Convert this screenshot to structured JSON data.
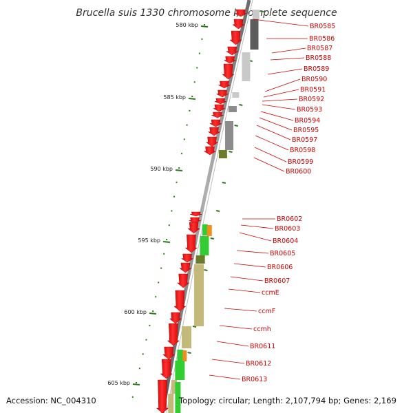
{
  "title": "Brucella suis 1330 chromosome I, complete sequence",
  "accession": "Accession: NC_004310",
  "topology": "Topology: circular; Length: 2,107,794 bp; Genes: 2,169",
  "colors": {
    "backbone": "#7a7a7a",
    "gene": "#ff0000",
    "label": "#cc0000",
    "tick": "#2a7a1a",
    "gray_dark": "#5c5c5c",
    "gray_mid": "#8c8c8c",
    "gray_light": "#c9c9c9",
    "green": "#33cc33",
    "olive": "#6b7d2a",
    "khaki": "#c2b97a",
    "orange": "#f28c1c"
  },
  "kbp_marks": [
    {
      "label": "580 kbp",
      "value": 580
    },
    {
      "label": "585 kbp",
      "value": 585
    },
    {
      "label": "590 kbp",
      "value": 590
    },
    {
      "label": "595 kbp",
      "value": 595
    },
    {
      "label": "600 kbp",
      "value": 600
    },
    {
      "label": "605 kbp",
      "value": 605
    }
  ],
  "genes": [
    {
      "name": "BR0585"
    },
    {
      "name": "BR0586"
    },
    {
      "name": "BR0587"
    },
    {
      "name": "BR0588"
    },
    {
      "name": "BR0589"
    },
    {
      "name": "BR0590"
    },
    {
      "name": "BR0591"
    },
    {
      "name": "BR0592"
    },
    {
      "name": "BR0593"
    },
    {
      "name": "BR0594"
    },
    {
      "name": "BR0595"
    },
    {
      "name": "BR0597"
    },
    {
      "name": "BR0598"
    },
    {
      "name": "BR0599"
    },
    {
      "name": "BR0600"
    },
    {
      "name": "BR0602"
    },
    {
      "name": "BR0603"
    },
    {
      "name": "BR0604"
    },
    {
      "name": "BR0605"
    },
    {
      "name": "BR0606"
    },
    {
      "name": "BR0607"
    },
    {
      "name": "ccmE"
    },
    {
      "name": "ccmF"
    },
    {
      "name": "ccmh"
    },
    {
      "name": "BR0611"
    },
    {
      "name": "BR0612"
    },
    {
      "name": "BR0613"
    }
  ]
}
